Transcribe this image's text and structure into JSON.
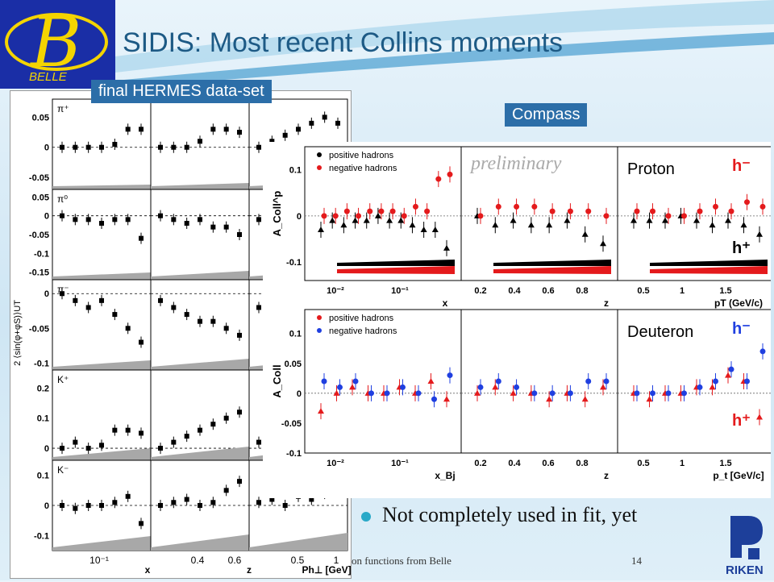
{
  "title": "SIDIS: Most recent Collins moments",
  "logo": {
    "letter": "B",
    "text": "BELLE"
  },
  "tags": {
    "hermes": "final HERMES data-set",
    "compass": "Compass"
  },
  "bullet": "Not completely used in fit, yet",
  "footer": {
    "left": "on functions from Belle",
    "page": "14"
  },
  "riken_logo": "RIKEN",
  "colors": {
    "title": "#1d5a85",
    "tag_bg": "#2c6ea8",
    "positive": "#000000",
    "negative": "#e41a1c",
    "deut_positive": "#e41a1c",
    "deut_negative": "#1f3fe0"
  },
  "chart_data": [
    {
      "type": "scatter",
      "name": "HERMES",
      "ylabel": "2 ⟨sin(φ+φS)⟩UT",
      "xlabels": [
        "x",
        "z",
        "Ph⊥ [GeV]"
      ],
      "xticks": [
        [
          "10⁻¹"
        ],
        [
          "0.4",
          "0.6"
        ],
        [
          "0.5",
          "1"
        ]
      ],
      "rows": [
        {
          "label": "π⁺",
          "ylim": [
            -0.07,
            0.08
          ],
          "yticks": [
            "0.05",
            "0",
            "-0.05"
          ],
          "values": [
            [
              0.0,
              0.0,
              0.0,
              0.0,
              0.005,
              0.03,
              0.03
            ],
            [
              0.0,
              0.0,
              0.0,
              0.01,
              0.03,
              0.03,
              0.025
            ],
            [
              0.0,
              0.01,
              0.02,
              0.03,
              0.04,
              0.05,
              0.04
            ]
          ]
        },
        {
          "label": "π⁰",
          "ylim": [
            -0.17,
            0.07
          ],
          "yticks": [
            "0.05",
            "0",
            "-0.05",
            "-0.1",
            "-0.15"
          ],
          "values": [
            [
              0.0,
              -0.01,
              -0.01,
              -0.02,
              -0.01,
              -0.01,
              -0.06
            ],
            [
              0.0,
              -0.01,
              -0.02,
              -0.01,
              -0.03,
              -0.03,
              -0.05
            ],
            [
              -0.01,
              -0.02,
              -0.03,
              -0.02,
              -0.03,
              -0.04,
              -0.05
            ]
          ]
        },
        {
          "label": "π⁻",
          "ylim": [
            -0.11,
            0.02
          ],
          "yticks": [
            "0",
            "-0.05",
            "-0.1"
          ],
          "values": [
            [
              0.0,
              -0.01,
              -0.02,
              -0.01,
              -0.03,
              -0.05,
              -0.07
            ],
            [
              -0.01,
              -0.02,
              -0.03,
              -0.04,
              -0.04,
              -0.05,
              -0.06
            ],
            [
              -0.02,
              -0.03,
              -0.03,
              -0.04,
              -0.05,
              -0.05,
              -0.06
            ]
          ]
        },
        {
          "label": "K⁺",
          "ylim": [
            -0.04,
            0.26
          ],
          "yticks": [
            "0.2",
            "0.1",
            "0"
          ],
          "values": [
            [
              0.0,
              0.02,
              0.0,
              0.01,
              0.06,
              0.06,
              0.05
            ],
            [
              0.0,
              0.02,
              0.04,
              0.06,
              0.08,
              0.1,
              0.12
            ],
            [
              0.02,
              0.03,
              0.04,
              0.05,
              0.07,
              0.08,
              0.1
            ]
          ]
        },
        {
          "label": "K⁻",
          "ylim": [
            -0.15,
            0.15
          ],
          "yticks": [
            "0.1",
            "0",
            "-0.1"
          ],
          "values": [
            [
              0.0,
              -0.01,
              0.0,
              0.0,
              0.01,
              0.03,
              -0.06
            ],
            [
              0.0,
              0.01,
              0.02,
              0.0,
              0.01,
              0.05,
              0.08
            ],
            [
              0.01,
              0.02,
              0.0,
              0.03,
              0.02,
              0.04,
              0.06
            ]
          ]
        }
      ]
    },
    {
      "type": "scatter",
      "name": "Compass Proton",
      "label": "Proton",
      "watermark": "preliminary",
      "ylabel": "A_Coll^p",
      "ylim": [
        -0.14,
        0.15
      ],
      "yticks": [
        "0.1",
        "0",
        "-0.1"
      ],
      "xlabels": [
        "x",
        "z",
        "pT (GeV/c)"
      ],
      "xticks": [
        [
          "10⁻²",
          "10⁻¹"
        ],
        [
          "0.2",
          "0.4",
          "0.6",
          "0.8"
        ],
        [
          "0.5",
          "1",
          "1.5"
        ]
      ],
      "legend": [
        {
          "label": "positive hadrons",
          "color": "#000000"
        },
        {
          "label": "negative hadrons",
          "color": "#e41a1c"
        }
      ],
      "hlabels": {
        "negative": "h⁻",
        "positive": "h⁺"
      },
      "panels": [
        {
          "positive": [
            -0.03,
            -0.01,
            -0.02,
            -0.01,
            -0.01,
            0.0,
            -0.01,
            -0.01,
            -0.02,
            -0.03,
            -0.03,
            -0.07
          ],
          "negative": [
            0.0,
            0.0,
            0.01,
            0.0,
            0.01,
            0.01,
            0.01,
            0.0,
            0.02,
            0.01,
            0.08,
            0.09
          ]
        },
        {
          "positive": [
            0.0,
            -0.02,
            -0.01,
            -0.02,
            -0.02,
            -0.01,
            -0.04,
            -0.06
          ],
          "negative": [
            0.0,
            0.02,
            0.02,
            0.02,
            0.01,
            0.01,
            0.01,
            0.0
          ]
        },
        {
          "positive": [
            -0.01,
            -0.01,
            -0.01,
            0.0,
            -0.01,
            -0.02,
            -0.01,
            -0.02,
            -0.04
          ],
          "negative": [
            0.01,
            0.01,
            0.0,
            0.0,
            0.01,
            0.02,
            0.01,
            0.03,
            0.02
          ]
        }
      ]
    },
    {
      "type": "scatter",
      "name": "Compass Deuteron",
      "label": "Deuteron",
      "ylabel": "A_Coll",
      "ylim": [
        -0.1,
        0.14
      ],
      "yticks": [
        "0.1",
        "0.05",
        "0",
        "-0.05",
        "-0.1"
      ],
      "xlabels": [
        "x_Bj",
        "z",
        "p_t [GeV/c]"
      ],
      "xticks": [
        [
          "10⁻²",
          "10⁻¹"
        ],
        [
          "0.2",
          "0.4",
          "0.6",
          "0.8"
        ],
        [
          "0.5",
          "1",
          "1.5"
        ]
      ],
      "legend": [
        {
          "label": "positive hadrons",
          "color": "#e41a1c"
        },
        {
          "label": "negative hadrons",
          "color": "#1f3fe0"
        }
      ],
      "hlabels": {
        "negative": "h⁻",
        "positive": "h⁺"
      },
      "panels": [
        {
          "positive": [
            -0.03,
            0.0,
            0.01,
            0.0,
            0.0,
            0.01,
            0.0,
            0.02,
            -0.01
          ],
          "negative": [
            0.02,
            0.01,
            0.02,
            0.0,
            0.0,
            0.01,
            0.0,
            -0.01,
            0.03
          ]
        },
        {
          "positive": [
            0.0,
            0.01,
            0.0,
            0.0,
            -0.01,
            0.0,
            -0.01,
            0.01
          ],
          "negative": [
            0.01,
            0.02,
            0.01,
            0.0,
            0.0,
            0.0,
            0.02,
            0.02
          ]
        },
        {
          "positive": [
            0.0,
            -0.01,
            0.0,
            0.0,
            0.01,
            0.01,
            0.03,
            0.02,
            -0.04
          ],
          "negative": [
            0.0,
            0.0,
            0.0,
            0.0,
            0.01,
            0.02,
            0.04,
            0.02,
            0.07
          ]
        }
      ]
    }
  ]
}
